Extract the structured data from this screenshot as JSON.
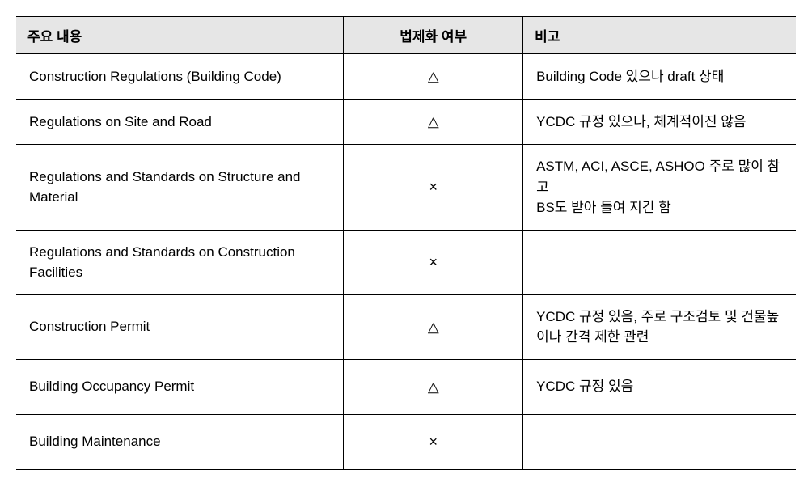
{
  "table": {
    "headers": {
      "content": "주요 내용",
      "status": "법제화 여부",
      "remarks": "비고"
    },
    "rows": [
      {
        "content": "Construction Regulations (Building Code)",
        "status": "△",
        "remarks": "Building Code 있으나 draft 상태"
      },
      {
        "content": "Regulations on Site and Road",
        "status": "△",
        "remarks": "YCDC 규정 있으나, 체계적이진 않음"
      },
      {
        "content": "Regulations and Standards on Structure and Material",
        "status": "×",
        "remarks": "ASTM, ACI, ASCE, ASHOO 주로 많이 참고\nBS도 받아 들여 지긴 함"
      },
      {
        "content": "Regulations and Standards on Construction Facilities",
        "status": "×",
        "remarks": ""
      },
      {
        "content": "Construction Permit",
        "status": "△",
        "remarks": "YCDC 규정 있음, 주로 구조검토 및 건물높이나 간격 제한 관련"
      },
      {
        "content": "Building Occupancy Permit",
        "status": "△",
        "remarks": "YCDC 규정 있음"
      },
      {
        "content": "Building Maintenance",
        "status": "×",
        "remarks": ""
      }
    ],
    "styling": {
      "header_bg": "#e6e6e6",
      "border_color": "#000000",
      "font_size": 17,
      "header_font_weight": "bold",
      "cell_color": "#000000",
      "background_color": "#ffffff",
      "col_widths": [
        "42%",
        "23%",
        "35%"
      ]
    }
  }
}
